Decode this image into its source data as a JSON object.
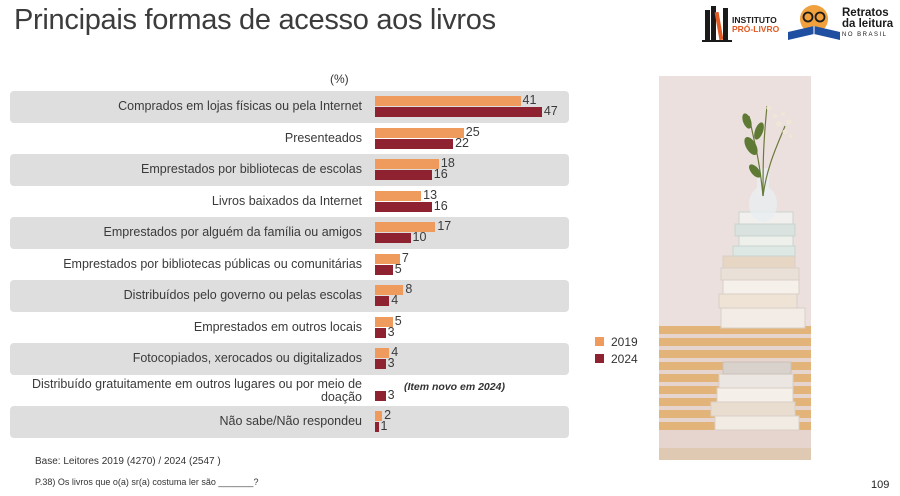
{
  "title": "Principais formas de acesso aos livros",
  "logos": {
    "instituto_line1": "INSTITUTO",
    "instituto_line2": "PRÓ-LIVRO",
    "retratos_line1": "Retratos",
    "retratos_line2": "da leitura",
    "retratos_line3": "NO BRASIL"
  },
  "unit_label": "(%)",
  "note_new_item": "(Item novo em 2024)",
  "base_text": "Base: Leitores  2019 (4270) / 2024 (2547 )",
  "question_text": "P.38) Os livros que o(a) sr(a) costuma ler são _______?",
  "page_number": "109",
  "colors": {
    "2019": "#ee9b5d",
    "2024": "#8e2231",
    "row_band": "#dedede"
  },
  "chart_data": {
    "type": "bar",
    "orientation": "horizontal",
    "categories": [
      "Comprados em lojas físicas ou pela Internet",
      "Presenteados",
      "Emprestados por bibliotecas de escolas",
      "Livros baixados da Internet",
      "Emprestados por alguém da família ou amigos",
      "Emprestados por bibliotecas públicas ou comunitárias",
      "Distribuídos pelo governo ou pelas escolas",
      "Emprestados em outros locais",
      "Fotocopiados, xerocados ou digitalizados",
      "Distribuído gratuitamente em outros lugares ou por meio de doação",
      "Não sabe/Não respondeu"
    ],
    "series": [
      {
        "name": "2019",
        "values": [
          41,
          25,
          18,
          13,
          17,
          7,
          8,
          5,
          4,
          null,
          2
        ]
      },
      {
        "name": "2024",
        "values": [
          47,
          22,
          16,
          16,
          10,
          5,
          4,
          3,
          3,
          3,
          1
        ]
      }
    ],
    "legend": [
      "2019",
      "2024"
    ],
    "legend_position": "right"
  }
}
